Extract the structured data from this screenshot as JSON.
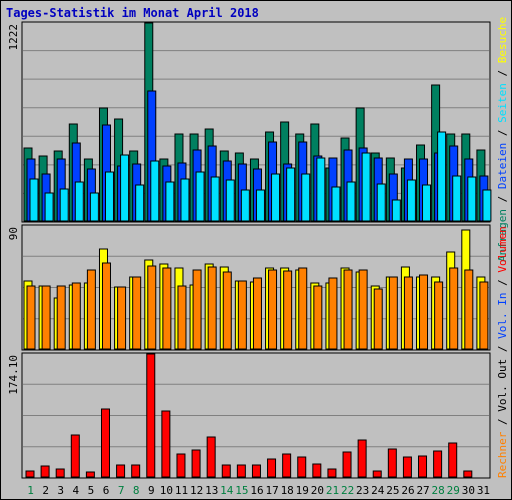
{
  "title": "Tages-Statistik im Monat April 2018",
  "colors": {
    "background": "#c0c0c0",
    "plot_bg": "#c0c0c0",
    "grid": "#808080",
    "title": "#0000c0",
    "anfragen": "#008060",
    "dateien": "#0040ff",
    "seiten": "#00e0ff",
    "besuche": "#ffff00",
    "rechner": "#ff8000",
    "volumen": "#ff0000",
    "weekday": "#000000",
    "weekend": "#008040",
    "divider": "#000000"
  },
  "right_labels": {
    "panel1": [
      {
        "text": "Anfragen",
        "color": "#008060"
      },
      {
        "text": " / ",
        "color": "#000000"
      },
      {
        "text": "Dateien",
        "color": "#0040ff"
      },
      {
        "text": " / ",
        "color": "#000000"
      },
      {
        "text": "Seiten",
        "color": "#00e0ff"
      },
      {
        "text": " / ",
        "color": "#000000"
      },
      {
        "text": "Besuche",
        "color": "#ffff00"
      }
    ],
    "panel2": [
      {
        "text": "Rechner",
        "color": "#ff8000"
      },
      {
        "text": " / ",
        "color": "#000000"
      },
      {
        "text": "Vol. Out",
        "color": "#000000"
      },
      {
        "text": " / ",
        "color": "#000000"
      },
      {
        "text": "Vol. In",
        "color": "#0040ff"
      },
      {
        "text": " / ",
        "color": "#000000"
      },
      {
        "text": "Volumen",
        "color": "#ff0000"
      }
    ]
  },
  "chart_data": {
    "type": "bar",
    "categories": [
      "1",
      "2",
      "3",
      "4",
      "5",
      "6",
      "7",
      "8",
      "9",
      "10",
      "11",
      "12",
      "13",
      "14",
      "15",
      "16",
      "17",
      "18",
      "19",
      "20",
      "21",
      "22",
      "23",
      "24",
      "25",
      "26",
      "27",
      "28",
      "29",
      "30",
      "31"
    ],
    "weekend_days": [
      "1",
      "7",
      "8",
      "14",
      "15",
      "21",
      "22",
      "28",
      "29"
    ],
    "panels": [
      {
        "ymax_label": "1222",
        "ylim": [
          0,
          1222
        ],
        "series": [
          {
            "name": "Anfragen",
            "values": [
              450,
              400,
              430,
              600,
              380,
              700,
              630,
              430,
              1222,
              380,
              540,
              540,
              570,
              430,
              420,
              380,
              550,
              610,
              540,
              600,
              330,
              510,
              700,
              420,
              390,
              330,
              470,
              840,
              540,
              540,
              440
            ]
          },
          {
            "name": "Dateien",
            "values": [
              380,
              290,
              380,
              480,
              320,
              590,
              340,
              350,
              800,
              340,
              360,
              440,
              460,
              370,
              350,
              320,
              490,
              350,
              490,
              400,
              390,
              440,
              450,
              390,
              290,
              380,
              380,
              420,
              460,
              380,
              280
            ]
          },
          {
            "name": "Seiten",
            "values": [
              260,
              170,
              200,
              240,
              170,
              300,
              410,
              220,
              370,
              240,
              260,
              300,
              270,
              250,
              190,
              190,
              290,
              330,
              290,
              390,
              210,
              240,
              420,
              230,
              130,
              250,
              220,
              550,
              280,
              270,
              190
            ]
          },
          {
            "name": "Besuche",
            "values": [
              0,
              0,
              0,
              0,
              0,
              0,
              0,
              0,
              0,
              0,
              0,
              0,
              0,
              0,
              0,
              0,
              0,
              0,
              0,
              0,
              0,
              0,
              0,
              0,
              0,
              0,
              0,
              0,
              0,
              0,
              0
            ]
          }
        ]
      },
      {
        "ymax_label": "90",
        "ylim": [
          0,
          90
        ],
        "series": [
          {
            "name": "Besuche",
            "values": [
              50,
              46,
              37,
              47,
              48,
              73,
              45,
              53,
              65,
              62,
              59,
              47,
              62,
              60,
              50,
              49,
              59,
              59,
              58,
              48,
              48,
              59,
              56,
              46,
              53,
              60,
              53,
              53,
              71,
              87,
              53
            ]
          },
          {
            "name": "Rechner",
            "values": [
              46,
              46,
              46,
              48,
              58,
              63,
              45,
              53,
              61,
              59,
              46,
              58,
              60,
              56,
              50,
              52,
              58,
              57,
              59,
              46,
              52,
              58,
              58,
              44,
              53,
              53,
              54,
              49,
              59,
              58,
              49
            ]
          }
        ]
      },
      {
        "ymax_label": "174.10",
        "ylim": [
          0,
          174.1
        ],
        "series": [
          {
            "name": "Volumen",
            "values": [
              8,
              16,
              11,
              60,
              7,
              96,
              17,
              17,
              174.1,
              93,
              33,
              38,
              57,
              17,
              17,
              17,
              26,
              33,
              29,
              18,
              11,
              35,
              53,
              8,
              40,
              28,
              30,
              37,
              48,
              8,
              0
            ]
          }
        ]
      }
    ]
  }
}
